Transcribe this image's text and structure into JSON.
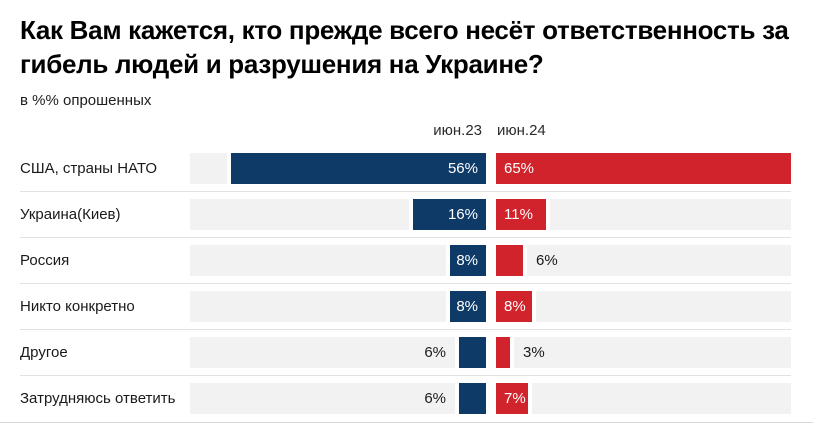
{
  "title": "Как Вам кажется, кто прежде всего несёт ответственность за гибель людей и разрушения на Украине?",
  "subtitle": "в %% опрошенных",
  "colors": {
    "series_jun23": "#0d3a66",
    "series_jun24": "#d1232b",
    "track": "#f2f2f2",
    "separator": "#e2e2e2"
  },
  "chart_data": {
    "type": "bar",
    "orientation": "horizontal",
    "title": "Как Вам кажется, кто прежде всего несёт ответственность за гибель людей и разрушения на Украине?",
    "subtitle": "в %% опрошенных",
    "value_suffix": "%",
    "xmax": 65,
    "categories": [
      "США, страны НАТО",
      "Украина(Киев)",
      "Россия",
      "Никто конкретно",
      "Другое",
      "Затрудняюсь ответить"
    ],
    "series": [
      {
        "name": "июн.23",
        "color": "#0d3a66",
        "values": [
          56,
          16,
          8,
          8,
          6,
          6
        ]
      },
      {
        "name": "июн.24",
        "color": "#d1232b",
        "values": [
          65,
          11,
          6,
          8,
          3,
          7
        ]
      }
    ]
  }
}
